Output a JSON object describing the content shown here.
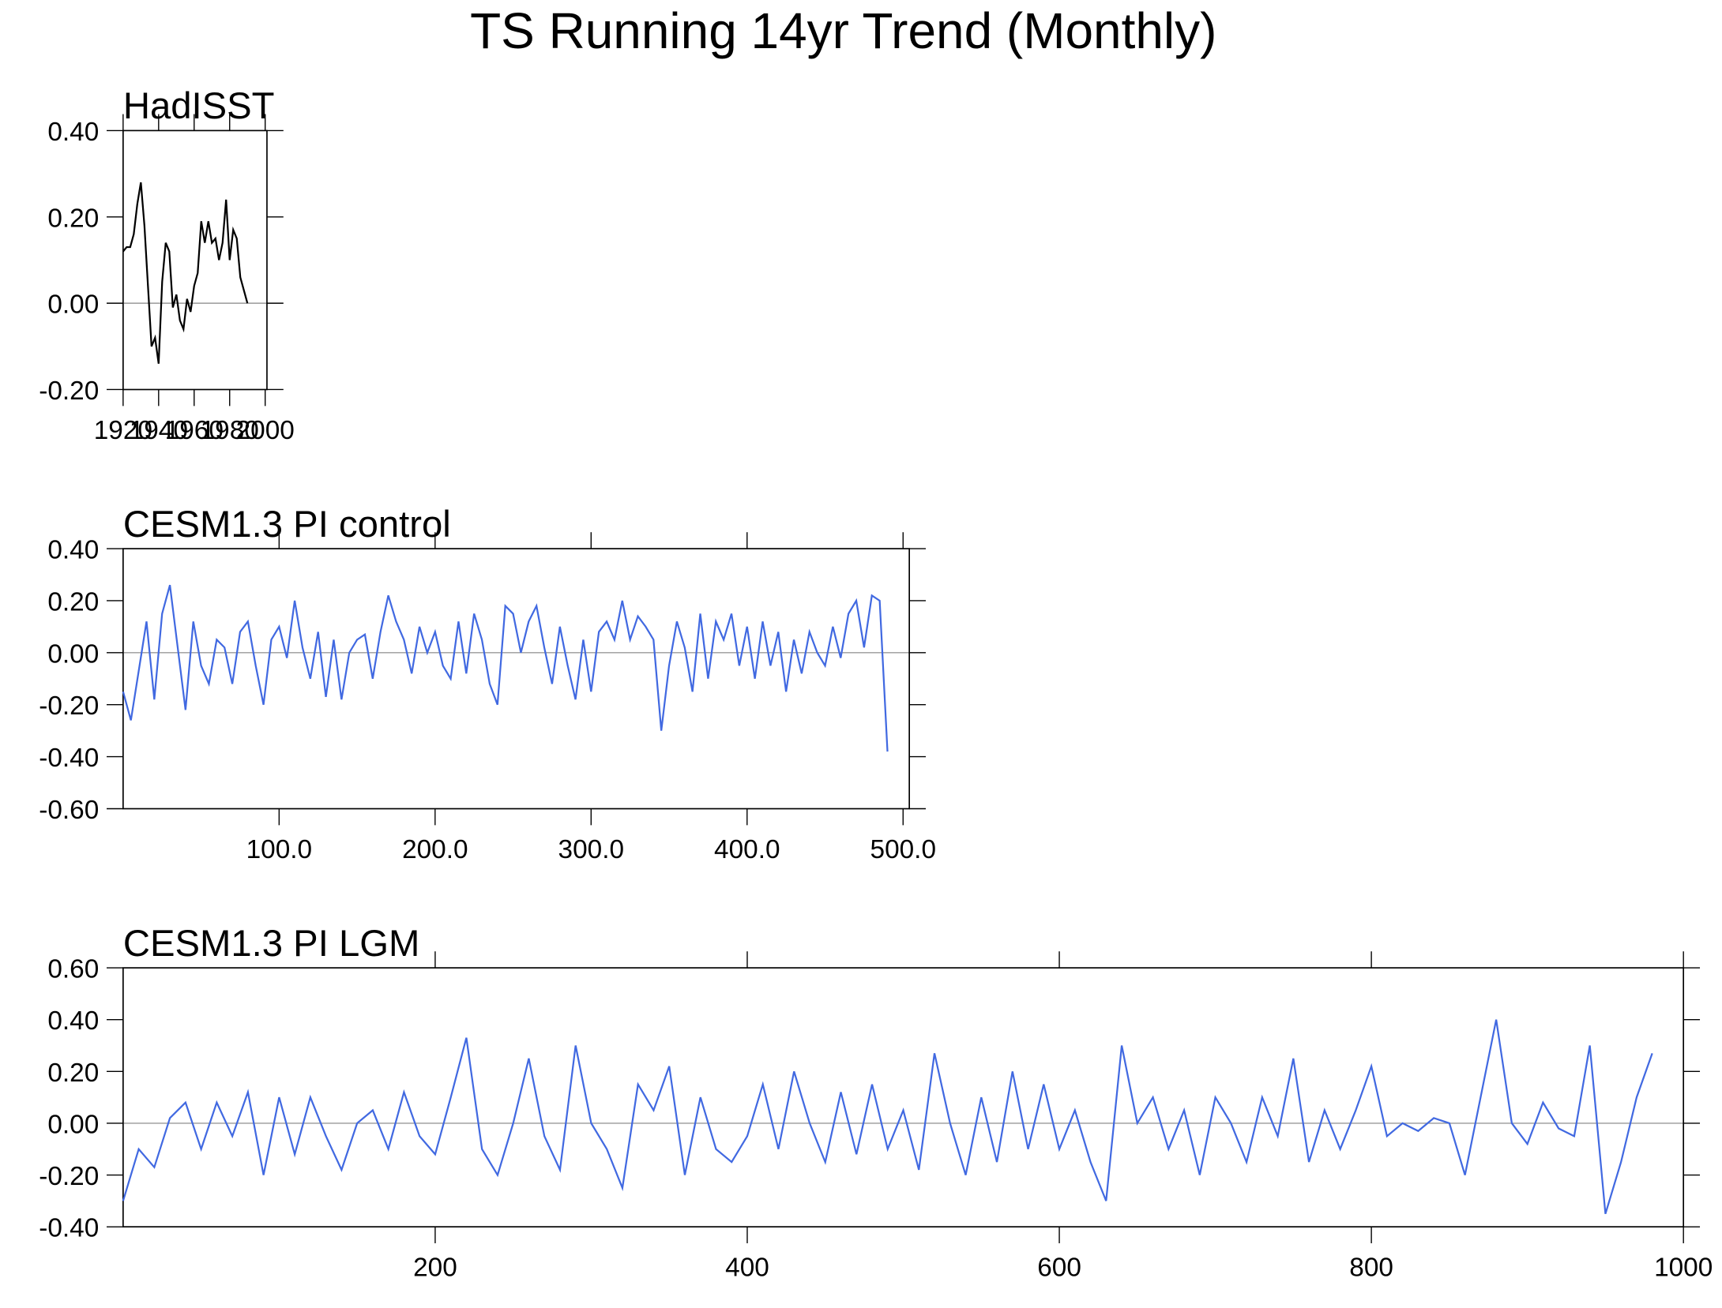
{
  "title": "TS Running 14yr Trend (Monthly)",
  "chart_data": [
    {
      "type": "line",
      "title": "HadISST",
      "x": [
        1920,
        1922,
        1924,
        1926,
        1928,
        1930,
        1932,
        1934,
        1936,
        1938,
        1940,
        1942,
        1944,
        1946,
        1948,
        1950,
        1952,
        1954,
        1956,
        1958,
        1960,
        1962,
        1964,
        1966,
        1968,
        1970,
        1972,
        1974,
        1976,
        1978,
        1980,
        1982,
        1984,
        1986,
        1988,
        1990
      ],
      "series": [
        {
          "color": "#000000",
          "values": [
            0.12,
            0.13,
            0.13,
            0.16,
            0.23,
            0.28,
            0.18,
            0.04,
            -0.1,
            -0.08,
            -0.14,
            0.05,
            0.14,
            0.12,
            -0.01,
            0.02,
            -0.04,
            -0.06,
            0.01,
            -0.02,
            0.04,
            0.07,
            0.19,
            0.14,
            0.19,
            0.14,
            0.15,
            0.1,
            0.14,
            0.24,
            0.1,
            0.17,
            0.15,
            0.06,
            0.03,
            0.0
          ]
        }
      ],
      "xlim": [
        1920,
        2001
      ],
      "xticks": [
        1920,
        1940,
        1960,
        1980,
        2000
      ],
      "ylim": [
        -0.2,
        0.4
      ],
      "yticks": [
        {
          "value": 0.4,
          "label": "0.40"
        },
        {
          "value": 0.2,
          "label": "0.20"
        },
        {
          "value": 0,
          "label": "0.00"
        },
        {
          "value": -0.2,
          "label": "-0.20"
        }
      ],
      "reference_line": 0
    },
    {
      "type": "line",
      "title": "CESM1.3 PI control",
      "x": [
        0,
        5,
        10,
        15,
        20,
        25,
        30,
        35,
        40,
        45,
        50,
        55,
        60,
        65,
        70,
        75,
        80,
        85,
        90,
        95,
        100,
        105,
        110,
        115,
        120,
        125,
        130,
        135,
        140,
        145,
        150,
        155,
        160,
        165,
        170,
        175,
        180,
        185,
        190,
        195,
        200,
        205,
        210,
        215,
        220,
        225,
        230,
        235,
        240,
        245,
        250,
        255,
        260,
        265,
        270,
        275,
        280,
        285,
        290,
        295,
        300,
        305,
        310,
        315,
        320,
        325,
        330,
        335,
        340,
        345,
        350,
        355,
        360,
        365,
        370,
        375,
        380,
        385,
        390,
        395,
        400,
        405,
        410,
        415,
        420,
        425,
        430,
        435,
        440,
        445,
        450,
        455,
        460,
        465,
        470,
        475,
        480,
        485,
        490
      ],
      "series": [
        {
          "color": "#4169e1",
          "values": [
            -0.15,
            -0.26,
            -0.07,
            0.12,
            -0.18,
            0.15,
            0.26,
            0.02,
            -0.22,
            0.12,
            -0.05,
            -0.12,
            0.05,
            0.02,
            -0.12,
            0.08,
            0.12,
            -0.05,
            -0.2,
            0.05,
            0.1,
            -0.02,
            0.2,
            0.02,
            -0.1,
            0.08,
            -0.17,
            0.05,
            -0.18,
            0.0,
            0.05,
            0.07,
            -0.1,
            0.08,
            0.22,
            0.12,
            0.05,
            -0.08,
            0.1,
            0.0,
            0.08,
            -0.05,
            -0.1,
            0.12,
            -0.08,
            0.15,
            0.05,
            -0.12,
            -0.2,
            0.18,
            0.15,
            0.0,
            0.12,
            0.18,
            0.02,
            -0.12,
            0.1,
            -0.05,
            -0.18,
            0.05,
            -0.15,
            0.08,
            0.12,
            0.05,
            0.2,
            0.05,
            0.14,
            0.1,
            0.05,
            -0.3,
            -0.05,
            0.12,
            0.02,
            -0.15,
            0.15,
            -0.1,
            0.12,
            0.05,
            0.15,
            -0.05,
            0.1,
            -0.1,
            0.12,
            -0.05,
            0.08,
            -0.15,
            0.05,
            -0.08,
            0.08,
            0.0,
            -0.05,
            0.1,
            -0.02,
            0.15,
            0.2,
            0.02,
            0.22,
            0.2,
            -0.38
          ]
        }
      ],
      "xlim": [
        0,
        504
      ],
      "xticks": [
        {
          "value": 100,
          "label": "100.0"
        },
        {
          "value": 200,
          "label": "200.0"
        },
        {
          "value": 300,
          "label": "300.0"
        },
        {
          "value": 400,
          "label": "400.0"
        },
        {
          "value": 500,
          "label": "500.0"
        }
      ],
      "ylim": [
        -0.6,
        0.4
      ],
      "yticks": [
        {
          "value": 0.4,
          "label": "0.40"
        },
        {
          "value": 0.2,
          "label": "0.20"
        },
        {
          "value": 0,
          "label": "0.00"
        },
        {
          "value": -0.2,
          "label": "-0.20"
        },
        {
          "value": -0.4,
          "label": "-0.40"
        },
        {
          "value": -0.6,
          "label": "-0.60"
        }
      ],
      "reference_line": 0
    },
    {
      "type": "line",
      "title": "CESM1.3 PI LGM",
      "x": [
        0,
        10,
        20,
        30,
        40,
        50,
        60,
        70,
        80,
        90,
        100,
        110,
        120,
        130,
        140,
        150,
        160,
        170,
        180,
        190,
        200,
        210,
        220,
        230,
        240,
        250,
        260,
        270,
        280,
        290,
        300,
        310,
        320,
        330,
        340,
        350,
        360,
        370,
        380,
        390,
        400,
        410,
        420,
        430,
        440,
        450,
        460,
        470,
        480,
        490,
        500,
        510,
        520,
        530,
        540,
        550,
        560,
        570,
        580,
        590,
        600,
        610,
        620,
        630,
        640,
        650,
        660,
        670,
        680,
        690,
        700,
        710,
        720,
        730,
        740,
        750,
        760,
        770,
        780,
        790,
        800,
        810,
        820,
        830,
        840,
        850,
        860,
        870,
        880,
        890,
        900,
        910,
        920,
        930,
        940,
        950,
        960,
        970,
        980
      ],
      "series": [
        {
          "color": "#4169e1",
          "values": [
            -0.3,
            -0.1,
            -0.17,
            0.02,
            0.08,
            -0.1,
            0.08,
            -0.05,
            0.12,
            -0.2,
            0.1,
            -0.12,
            0.1,
            -0.05,
            -0.18,
            0.0,
            0.05,
            -0.1,
            0.12,
            -0.05,
            -0.12,
            0.1,
            0.33,
            -0.1,
            -0.2,
            0.0,
            0.25,
            -0.05,
            -0.18,
            0.3,
            0.0,
            -0.1,
            -0.25,
            0.15,
            0.05,
            0.22,
            -0.2,
            0.1,
            -0.1,
            -0.15,
            -0.05,
            0.15,
            -0.1,
            0.2,
            0.0,
            -0.15,
            0.12,
            -0.12,
            0.15,
            -0.1,
            0.05,
            -0.18,
            0.27,
            0.0,
            -0.2,
            0.1,
            -0.15,
            0.2,
            -0.1,
            0.15,
            -0.1,
            0.05,
            -0.15,
            -0.3,
            0.3,
            0.0,
            0.1,
            -0.1,
            0.05,
            -0.2,
            0.1,
            0.0,
            -0.15,
            0.1,
            -0.05,
            0.25,
            -0.15,
            0.05,
            -0.1,
            0.05,
            0.22,
            -0.05,
            0.0,
            -0.03,
            0.02,
            0.0,
            -0.2,
            0.1,
            0.4,
            0.0,
            -0.08,
            0.08,
            -0.02,
            -0.05,
            0.3,
            -0.35,
            -0.15,
            0.1,
            0.27
          ]
        }
      ],
      "xlim": [
        0,
        1000
      ],
      "xticks": [
        200,
        400,
        600,
        800,
        1000
      ],
      "ylim": [
        -0.4,
        0.6
      ],
      "yticks": [
        {
          "value": 0.6,
          "label": "0.60"
        },
        {
          "value": 0.4,
          "label": "0.40"
        },
        {
          "value": 0.2,
          "label": "0.20"
        },
        {
          "value": 0,
          "label": "0.00"
        },
        {
          "value": -0.2,
          "label": "-0.20"
        },
        {
          "value": -0.4,
          "label": "-0.40"
        }
      ],
      "reference_line": 0
    }
  ]
}
